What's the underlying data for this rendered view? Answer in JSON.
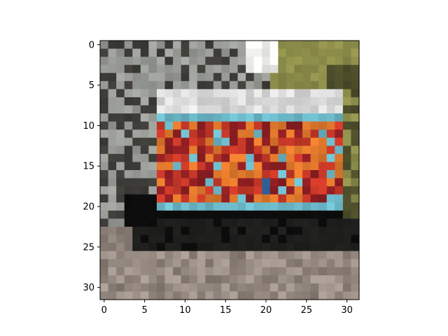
{
  "chart_data": {
    "type": "heatmap",
    "title": "",
    "xlabel": "",
    "ylabel": "",
    "grid_size": [
      32,
      32
    ],
    "xlim": [
      -0.5,
      31.5
    ],
    "ylim": [
      31.5,
      -0.5
    ],
    "x_ticks": [
      0,
      5,
      10,
      15,
      20,
      25,
      30
    ],
    "y_ticks": [
      0,
      5,
      10,
      15,
      20,
      25,
      30
    ],
    "x_tick_labels": [
      "0",
      "5",
      "10",
      "15",
      "20",
      "25",
      "30"
    ],
    "y_tick_labels": [
      "0",
      "5",
      "10",
      "15",
      "20",
      "25",
      "30"
    ],
    "grid": false,
    "colors": {
      "sky": "#f3f3ef",
      "foliage": "#8c8c4a",
      "foliage_dark": "#4c4d2a",
      "left_scene": "#9a9c98",
      "left_dark": "#3e3c38",
      "truck_roof": "#dcdcdc",
      "truck_teal": "#6cb8c8",
      "graffiti_red": "#c83828",
      "graffiti_orange": "#e0782c",
      "graffiti_dark_red": "#8c1e22",
      "graffiti_blue": "#3468a0",
      "under_truck": "#1e1e1c",
      "wheel_shadow": "#0c0c0c",
      "road": "#a0948c",
      "road_dark": "#8a7e76"
    }
  }
}
